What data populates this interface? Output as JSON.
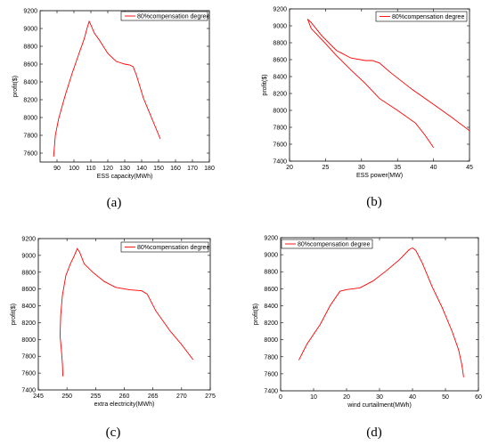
{
  "chart_data": [
    {
      "type": "line",
      "panel_label": "(a)",
      "xlabel": "ESS capacity(MWh)",
      "ylabel": "profit($)",
      "xlim": [
        80,
        180
      ],
      "ylim": [
        7500,
        9200
      ],
      "xticks": [
        90,
        100,
        110,
        120,
        130,
        140,
        150,
        160,
        170,
        180
      ],
      "yticks": [
        7600,
        7800,
        8000,
        8200,
        8400,
        8600,
        8800,
        9000,
        9200
      ],
      "color": "#ff0000",
      "series": [
        {
          "name": "80%compensation degree",
          "x": [
            88,
            89,
            91,
            95,
            99,
            103,
            106,
            108,
            109,
            110,
            112,
            115,
            120,
            125,
            130,
            133,
            135,
            137,
            141,
            146,
            151
          ],
          "y": [
            7560,
            7800,
            7990,
            8260,
            8500,
            8720,
            8880,
            9020,
            9080,
            9040,
            8950,
            8870,
            8720,
            8630,
            8600,
            8590,
            8570,
            8470,
            8220,
            7990,
            7760
          ]
        }
      ]
    },
    {
      "type": "line",
      "panel_label": "(b)",
      "xlabel": "ESS power(MW)",
      "ylabel": "profit($)",
      "xlim": [
        20,
        45
      ],
      "ylim": [
        7400,
        9200
      ],
      "xticks": [
        20,
        25,
        30,
        35,
        40,
        45
      ],
      "yticks": [
        7400,
        7600,
        7800,
        8000,
        8200,
        8400,
        8600,
        8800,
        9000,
        9200
      ],
      "color": "#ff0000",
      "series": [
        {
          "name": "80%compensation degree",
          "x": [
            40,
            38.8,
            37.5,
            35,
            32.5,
            30.5,
            28.5,
            26.5,
            25,
            24,
            23,
            22.5,
            23,
            24.5,
            26.5,
            28.5,
            30.5,
            31.5,
            32.5,
            34,
            37,
            40,
            42.5,
            45
          ],
          "y": [
            7560,
            7710,
            7850,
            8000,
            8140,
            8320,
            8480,
            8650,
            8790,
            8880,
            8970,
            9080,
            9040,
            8880,
            8710,
            8620,
            8590,
            8590,
            8560,
            8450,
            8250,
            8070,
            7920,
            7760
          ]
        }
      ]
    },
    {
      "type": "line",
      "panel_label": "(c)",
      "xlabel": "extra electricity(MWh)",
      "ylabel": "profit($)",
      "xlim": [
        245,
        275
      ],
      "ylim": [
        7400,
        9200
      ],
      "xticks": [
        245,
        250,
        255,
        260,
        265,
        270,
        275
      ],
      "yticks": [
        7400,
        7600,
        7800,
        8000,
        8200,
        8400,
        8600,
        8800,
        9000,
        9200
      ],
      "color": "#ff0000",
      "series": [
        {
          "name": "80%compensation degree",
          "x": [
            249.3,
            249.2,
            249.0,
            248.8,
            248.9,
            249.2,
            249.8,
            250.6,
            251.3,
            251.8,
            252.2,
            253.0,
            254.5,
            256.5,
            258.5,
            261,
            263,
            264,
            265.5,
            268,
            270,
            272
          ],
          "y": [
            7560,
            7720,
            7900,
            8040,
            8280,
            8520,
            8760,
            8900,
            9000,
            9080,
            9040,
            8900,
            8800,
            8690,
            8620,
            8590,
            8580,
            8540,
            8340,
            8100,
            7940,
            7760
          ]
        }
      ]
    },
    {
      "type": "line",
      "panel_label": "(d)",
      "xlabel": "wind curtailment(MWh)",
      "ylabel": "profit($)",
      "xlim": [
        0,
        60
      ],
      "ylim": [
        7400,
        9200
      ],
      "xticks": [
        0,
        10,
        20,
        30,
        40,
        50,
        60
      ],
      "yticks": [
        7400,
        7600,
        7800,
        8000,
        8200,
        8400,
        8600,
        8800,
        9000,
        9200
      ],
      "color": "#ff0000",
      "series": [
        {
          "name": "80%compensation degree",
          "x": [
            5.5,
            8,
            12,
            15,
            18,
            20,
            24,
            28,
            32,
            36,
            39,
            40,
            41,
            43,
            46,
            49,
            52,
            54,
            55,
            55.5
          ],
          "y": [
            7760,
            7950,
            8180,
            8400,
            8570,
            8590,
            8610,
            8690,
            8810,
            8940,
            9060,
            9080,
            9050,
            8900,
            8620,
            8380,
            8100,
            7880,
            7700,
            7560
          ]
        }
      ]
    }
  ]
}
